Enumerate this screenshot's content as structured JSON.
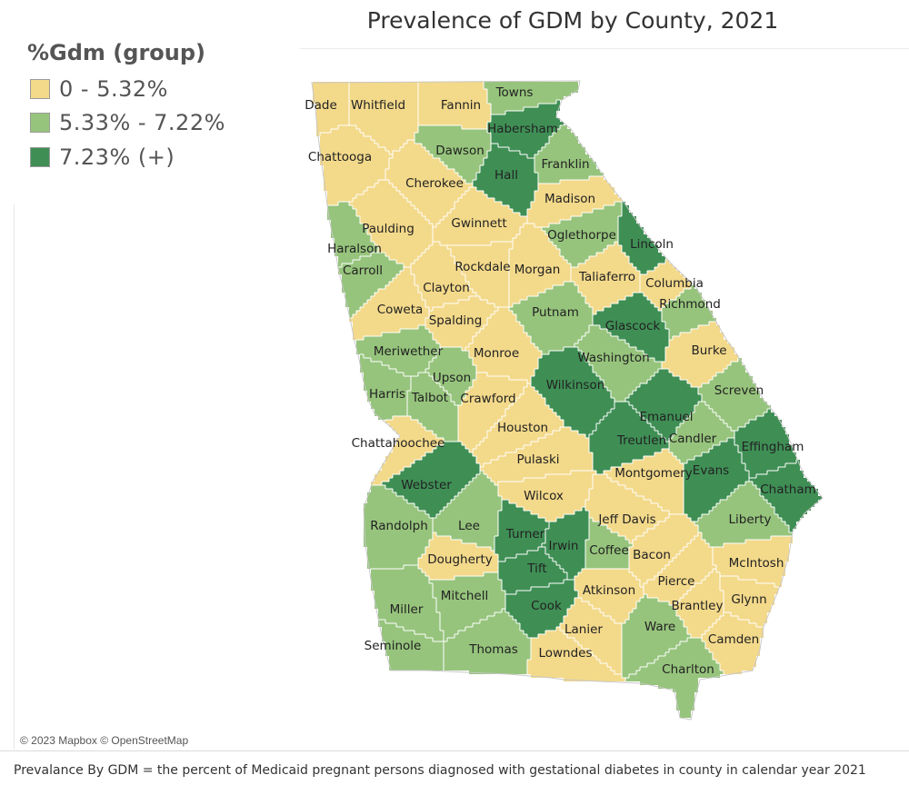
{
  "title": "Prevalence of GDM by County, 2021",
  "legend": {
    "title": "%Gdm (group)",
    "items": [
      {
        "label": "0 - 5.32%",
        "color": "#f3d98a"
      },
      {
        "label": "5.33% - 7.22%",
        "color": "#96c47c"
      },
      {
        "label": "7.23% (+)",
        "color": "#3f8f55"
      }
    ]
  },
  "colors": {
    "border": "#ffffff",
    "state_outline": "#c8c8c8"
  },
  "counties": [
    {
      "name": "Dade",
      "group": 0
    },
    {
      "name": "Whitfield",
      "group": 0
    },
    {
      "name": "Fannin",
      "group": 0
    },
    {
      "name": "Towns",
      "group": 1
    },
    {
      "name": "Habersham",
      "group": 2
    },
    {
      "name": "Chattooga",
      "group": 0
    },
    {
      "name": "Dawson",
      "group": 1
    },
    {
      "name": "Hall",
      "group": 2
    },
    {
      "name": "Franklin",
      "group": 1
    },
    {
      "name": "Cherokee",
      "group": 0
    },
    {
      "name": "Madison",
      "group": 0
    },
    {
      "name": "Gwinnett",
      "group": 0
    },
    {
      "name": "Paulding",
      "group": 0
    },
    {
      "name": "Oglethorpe",
      "group": 1
    },
    {
      "name": "Haralson",
      "group": 1
    },
    {
      "name": "Lincoln",
      "group": 2
    },
    {
      "name": "Rockdale",
      "group": 0
    },
    {
      "name": "Morgan",
      "group": 0
    },
    {
      "name": "Carroll",
      "group": 1
    },
    {
      "name": "Taliaferro",
      "group": 0
    },
    {
      "name": "Columbia",
      "group": 0
    },
    {
      "name": "Clayton",
      "group": 0
    },
    {
      "name": "Richmond",
      "group": 1
    },
    {
      "name": "Coweta",
      "group": 0
    },
    {
      "name": "Spalding",
      "group": 0
    },
    {
      "name": "Putnam",
      "group": 1
    },
    {
      "name": "Glascock",
      "group": 2
    },
    {
      "name": "Meriwether",
      "group": 1
    },
    {
      "name": "Monroe",
      "group": 0
    },
    {
      "name": "Washington",
      "group": 1
    },
    {
      "name": "Burke",
      "group": 0
    },
    {
      "name": "Upson",
      "group": 1
    },
    {
      "name": "Harris",
      "group": 1
    },
    {
      "name": "Talbot",
      "group": 1
    },
    {
      "name": "Crawford",
      "group": 0
    },
    {
      "name": "Wilkinson",
      "group": 2
    },
    {
      "name": "Screven",
      "group": 1
    },
    {
      "name": "Emanuel",
      "group": 2
    },
    {
      "name": "Houston",
      "group": 0
    },
    {
      "name": "Effingham",
      "group": 2
    },
    {
      "name": "Chattahoochee",
      "group": 0
    },
    {
      "name": "Treutlen",
      "group": 2
    },
    {
      "name": "Candler",
      "group": 1
    },
    {
      "name": "Pulaski",
      "group": 0
    },
    {
      "name": "Evans",
      "group": 2
    },
    {
      "name": "Webster",
      "group": 2
    },
    {
      "name": "Montgomery",
      "group": 0
    },
    {
      "name": "Chatham",
      "group": 2
    },
    {
      "name": "Wilcox",
      "group": 0
    },
    {
      "name": "Randolph",
      "group": 1
    },
    {
      "name": "Lee",
      "group": 1
    },
    {
      "name": "Turner",
      "group": 2
    },
    {
      "name": "Jeff Davis",
      "group": 0
    },
    {
      "name": "Liberty",
      "group": 1
    },
    {
      "name": "Irwin",
      "group": 2
    },
    {
      "name": "Coffee",
      "group": 1
    },
    {
      "name": "Bacon",
      "group": 0
    },
    {
      "name": "Dougherty",
      "group": 0
    },
    {
      "name": "Tift",
      "group": 2
    },
    {
      "name": "McIntosh",
      "group": 0
    },
    {
      "name": "Pierce",
      "group": 0
    },
    {
      "name": "Mitchell",
      "group": 1
    },
    {
      "name": "Atkinson",
      "group": 0
    },
    {
      "name": "Brantley",
      "group": 0
    },
    {
      "name": "Glynn",
      "group": 0
    },
    {
      "name": "Miller",
      "group": 1
    },
    {
      "name": "Cook",
      "group": 2
    },
    {
      "name": "Lanier",
      "group": 0
    },
    {
      "name": "Ware",
      "group": 1
    },
    {
      "name": "Seminole",
      "group": 1
    },
    {
      "name": "Thomas",
      "group": 1
    },
    {
      "name": "Lowndes",
      "group": 0
    },
    {
      "name": "Camden",
      "group": 0
    },
    {
      "name": "Charlton",
      "group": 1
    }
  ],
  "attribution": "© 2023 Mapbox © OpenStreetMap",
  "footnote": "Prevalance By GDM = the percent of Medicaid pregnant persons diagnosed with gestational diabetes in county in calendar year 2021"
}
